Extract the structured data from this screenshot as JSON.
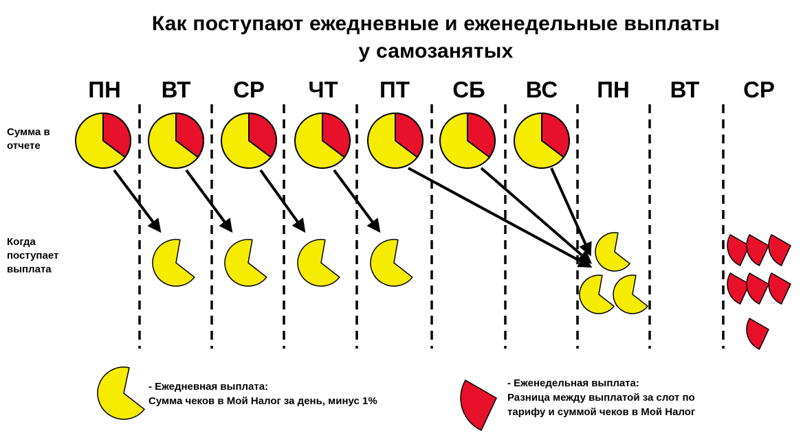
{
  "title_line1": "Как поступают ежедневные и еженедельные выплаты",
  "title_line2": "у самозанятых",
  "days": [
    "ПН",
    "ВТ",
    "СР",
    "ЧТ",
    "ПТ",
    "СБ",
    "ВС",
    "ПН",
    "ВТ",
    "СР"
  ],
  "row_labels": {
    "report": "Сумма в\nотчете",
    "payout": "Когда\nпоступает\nвыплата"
  },
  "legend": {
    "daily": "- Ежедневная выплата:\n   Сумма чеков в Мой Налог за день, минус 1%",
    "weekly": "- Еженедельная выплата:\n   Разница между выплатой за слот по\n   тарифу и суммой чеков в Мой Налог"
  },
  "colors": {
    "daily_payout": "#f5ec00",
    "weekly_payout": "#e8102a",
    "outline": "#000000"
  },
  "icons": {
    "daily": "yellow-pie-wedge",
    "weekly": "red-pie-wedge"
  }
}
